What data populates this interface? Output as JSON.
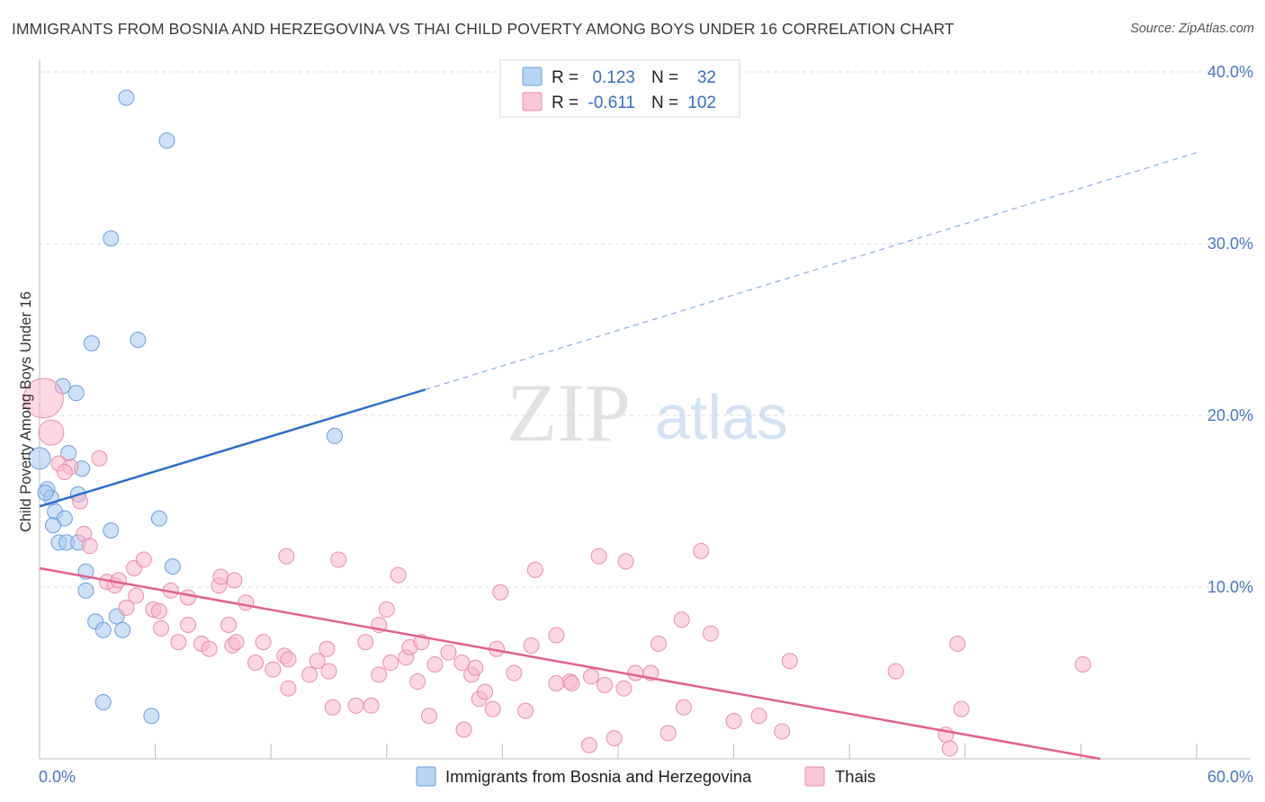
{
  "header": {
    "title": "IMMIGRANTS FROM BOSNIA AND HERZEGOVINA VS THAI CHILD POVERTY AMONG BOYS UNDER 16 CORRELATION CHART",
    "source": "Source: ZipAtlas.com"
  },
  "watermark": {
    "zip": "ZIP",
    "atlas": "atlas"
  },
  "legend": {
    "r_label": "R =",
    "n_label": "N =",
    "rows": [
      {
        "r": "0.123",
        "n": "32",
        "color": "#a8c8f0",
        "stroke": "#6f9fdc"
      },
      {
        "r": "-0.611",
        "n": "102",
        "color": "#f7b8cb",
        "stroke": "#e88fab"
      }
    ]
  },
  "chart_data": {
    "type": "scatter",
    "title": "IMMIGRANTS FROM BOSNIA AND HERZEGOVINA VS THAI CHILD POVERTY AMONG BOYS UNDER 16 CORRELATION CHART",
    "xlabel": "",
    "ylabel": "Child Poverty Among Boys Under 16",
    "xlim": [
      0,
      60
    ],
    "ylim": [
      0,
      40
    ],
    "x_tick_labels": [
      "0.0%",
      "60.0%"
    ],
    "y_ticks": [
      10,
      20,
      30,
      40
    ],
    "y_tick_labels": [
      "10.0%",
      "20.0%",
      "30.0%",
      "40.0%"
    ],
    "grid": true,
    "legend_position": "top-center",
    "series": [
      {
        "name": "Immigrants from Bosnia and Herzegovina",
        "color": "#a8c8f0",
        "stroke": "#6f9fdc",
        "line_color": "#2f6fca",
        "trend": {
          "x0": 0,
          "y0": 14.7,
          "x1": 20,
          "y1": 21.5,
          "x_dash_end": 60,
          "y_dash_end": 35.3
        },
        "points": [
          [
            4.5,
            38.5
          ],
          [
            6.6,
            36.0
          ],
          [
            3.7,
            30.3
          ],
          [
            5.1,
            24.4
          ],
          [
            2.7,
            24.2
          ],
          [
            1.2,
            21.7
          ],
          [
            1.9,
            21.3
          ],
          [
            0.0,
            17.5
          ],
          [
            1.5,
            17.8
          ],
          [
            2.2,
            16.9
          ],
          [
            0.4,
            15.7
          ],
          [
            0.6,
            15.2
          ],
          [
            0.3,
            15.5
          ],
          [
            2.0,
            15.4
          ],
          [
            0.8,
            14.4
          ],
          [
            1.3,
            14.0
          ],
          [
            6.2,
            14.0
          ],
          [
            3.7,
            13.3
          ],
          [
            0.7,
            13.6
          ],
          [
            1.0,
            12.6
          ],
          [
            1.4,
            12.6
          ],
          [
            2.0,
            12.6
          ],
          [
            6.9,
            11.2
          ],
          [
            2.4,
            10.9
          ],
          [
            2.4,
            9.8
          ],
          [
            2.9,
            8.0
          ],
          [
            4.0,
            8.3
          ],
          [
            4.3,
            7.5
          ],
          [
            3.3,
            7.5
          ],
          [
            15.3,
            18.8
          ],
          [
            3.3,
            3.3
          ],
          [
            5.8,
            2.5
          ]
        ]
      },
      {
        "name": "Thais",
        "color": "#f7b8cb",
        "stroke": "#e88fab",
        "line_color": "#e0628f",
        "trend": {
          "x0": 0,
          "y0": 11.1,
          "x1": 55,
          "y1": 0.0
        },
        "points": [
          [
            0.2,
            21.0
          ],
          [
            0.6,
            19.0
          ],
          [
            1.0,
            17.2
          ],
          [
            1.6,
            17.0
          ],
          [
            1.3,
            16.7
          ],
          [
            3.1,
            17.5
          ],
          [
            2.1,
            15.0
          ],
          [
            2.3,
            13.1
          ],
          [
            2.6,
            12.4
          ],
          [
            4.9,
            11.1
          ],
          [
            5.4,
            11.6
          ],
          [
            3.5,
            10.3
          ],
          [
            3.9,
            10.1
          ],
          [
            4.1,
            10.4
          ],
          [
            9.3,
            10.1
          ],
          [
            9.4,
            10.6
          ],
          [
            5.0,
            9.5
          ],
          [
            6.8,
            9.8
          ],
          [
            7.7,
            9.4
          ],
          [
            10.7,
            9.1
          ],
          [
            4.5,
            8.8
          ],
          [
            5.9,
            8.7
          ],
          [
            6.2,
            8.6
          ],
          [
            7.7,
            7.8
          ],
          [
            9.8,
            7.8
          ],
          [
            6.3,
            7.6
          ],
          [
            7.2,
            6.8
          ],
          [
            8.4,
            6.7
          ],
          [
            8.8,
            6.4
          ],
          [
            10.0,
            6.6
          ],
          [
            10.2,
            6.8
          ],
          [
            11.6,
            6.8
          ],
          [
            12.7,
            6.0
          ],
          [
            11.2,
            5.6
          ],
          [
            12.9,
            5.8
          ],
          [
            14.4,
            5.7
          ],
          [
            14.9,
            6.4
          ],
          [
            15.0,
            5.1
          ],
          [
            14.0,
            4.9
          ],
          [
            12.1,
            5.2
          ],
          [
            12.9,
            4.1
          ],
          [
            15.5,
            11.6
          ],
          [
            12.8,
            11.8
          ],
          [
            16.9,
            6.8
          ],
          [
            17.6,
            7.8
          ],
          [
            18.0,
            8.7
          ],
          [
            18.6,
            10.7
          ],
          [
            17.6,
            4.9
          ],
          [
            18.2,
            5.6
          ],
          [
            19.0,
            5.9
          ],
          [
            19.2,
            6.5
          ],
          [
            19.8,
            6.8
          ],
          [
            19.6,
            4.5
          ],
          [
            20.2,
            2.5
          ],
          [
            20.5,
            5.5
          ],
          [
            21.2,
            6.2
          ],
          [
            21.9,
            5.6
          ],
          [
            22.4,
            4.9
          ],
          [
            22.6,
            5.3
          ],
          [
            22.0,
            1.7
          ],
          [
            22.8,
            3.5
          ],
          [
            23.1,
            3.9
          ],
          [
            23.5,
            2.9
          ],
          [
            23.7,
            6.4
          ],
          [
            23.9,
            9.7
          ],
          [
            24.6,
            5.0
          ],
          [
            25.2,
            2.8
          ],
          [
            25.5,
            6.6
          ],
          [
            25.7,
            11.0
          ],
          [
            26.8,
            7.2
          ],
          [
            26.8,
            4.4
          ],
          [
            27.5,
            4.5
          ],
          [
            27.6,
            4.4
          ],
          [
            28.5,
            0.8
          ],
          [
            28.6,
            4.8
          ],
          [
            29.0,
            11.8
          ],
          [
            29.3,
            4.3
          ],
          [
            29.8,
            1.2
          ],
          [
            30.3,
            4.1
          ],
          [
            30.4,
            11.5
          ],
          [
            30.9,
            5.0
          ],
          [
            31.7,
            5.0
          ],
          [
            32.1,
            6.7
          ],
          [
            32.6,
            1.5
          ],
          [
            33.3,
            8.1
          ],
          [
            33.4,
            3.0
          ],
          [
            34.3,
            12.1
          ],
          [
            34.8,
            7.3
          ],
          [
            36.0,
            2.2
          ],
          [
            37.3,
            2.5
          ],
          [
            38.5,
            1.6
          ],
          [
            38.9,
            5.7
          ],
          [
            16.4,
            3.1
          ],
          [
            17.2,
            3.1
          ],
          [
            44.4,
            5.1
          ],
          [
            47.6,
            6.7
          ],
          [
            47.8,
            2.9
          ],
          [
            47.0,
            1.4
          ],
          [
            47.2,
            0.6
          ],
          [
            54.1,
            5.5
          ],
          [
            15.2,
            3.0
          ],
          [
            10.1,
            10.4
          ]
        ]
      }
    ]
  },
  "bottom_legend": [
    {
      "label": "Immigrants from Bosnia and Herzegovina",
      "color": "#a8c8f0",
      "stroke": "#6f9fdc"
    },
    {
      "label": "Thais",
      "color": "#f7b8cb",
      "stroke": "#e88fab"
    }
  ]
}
